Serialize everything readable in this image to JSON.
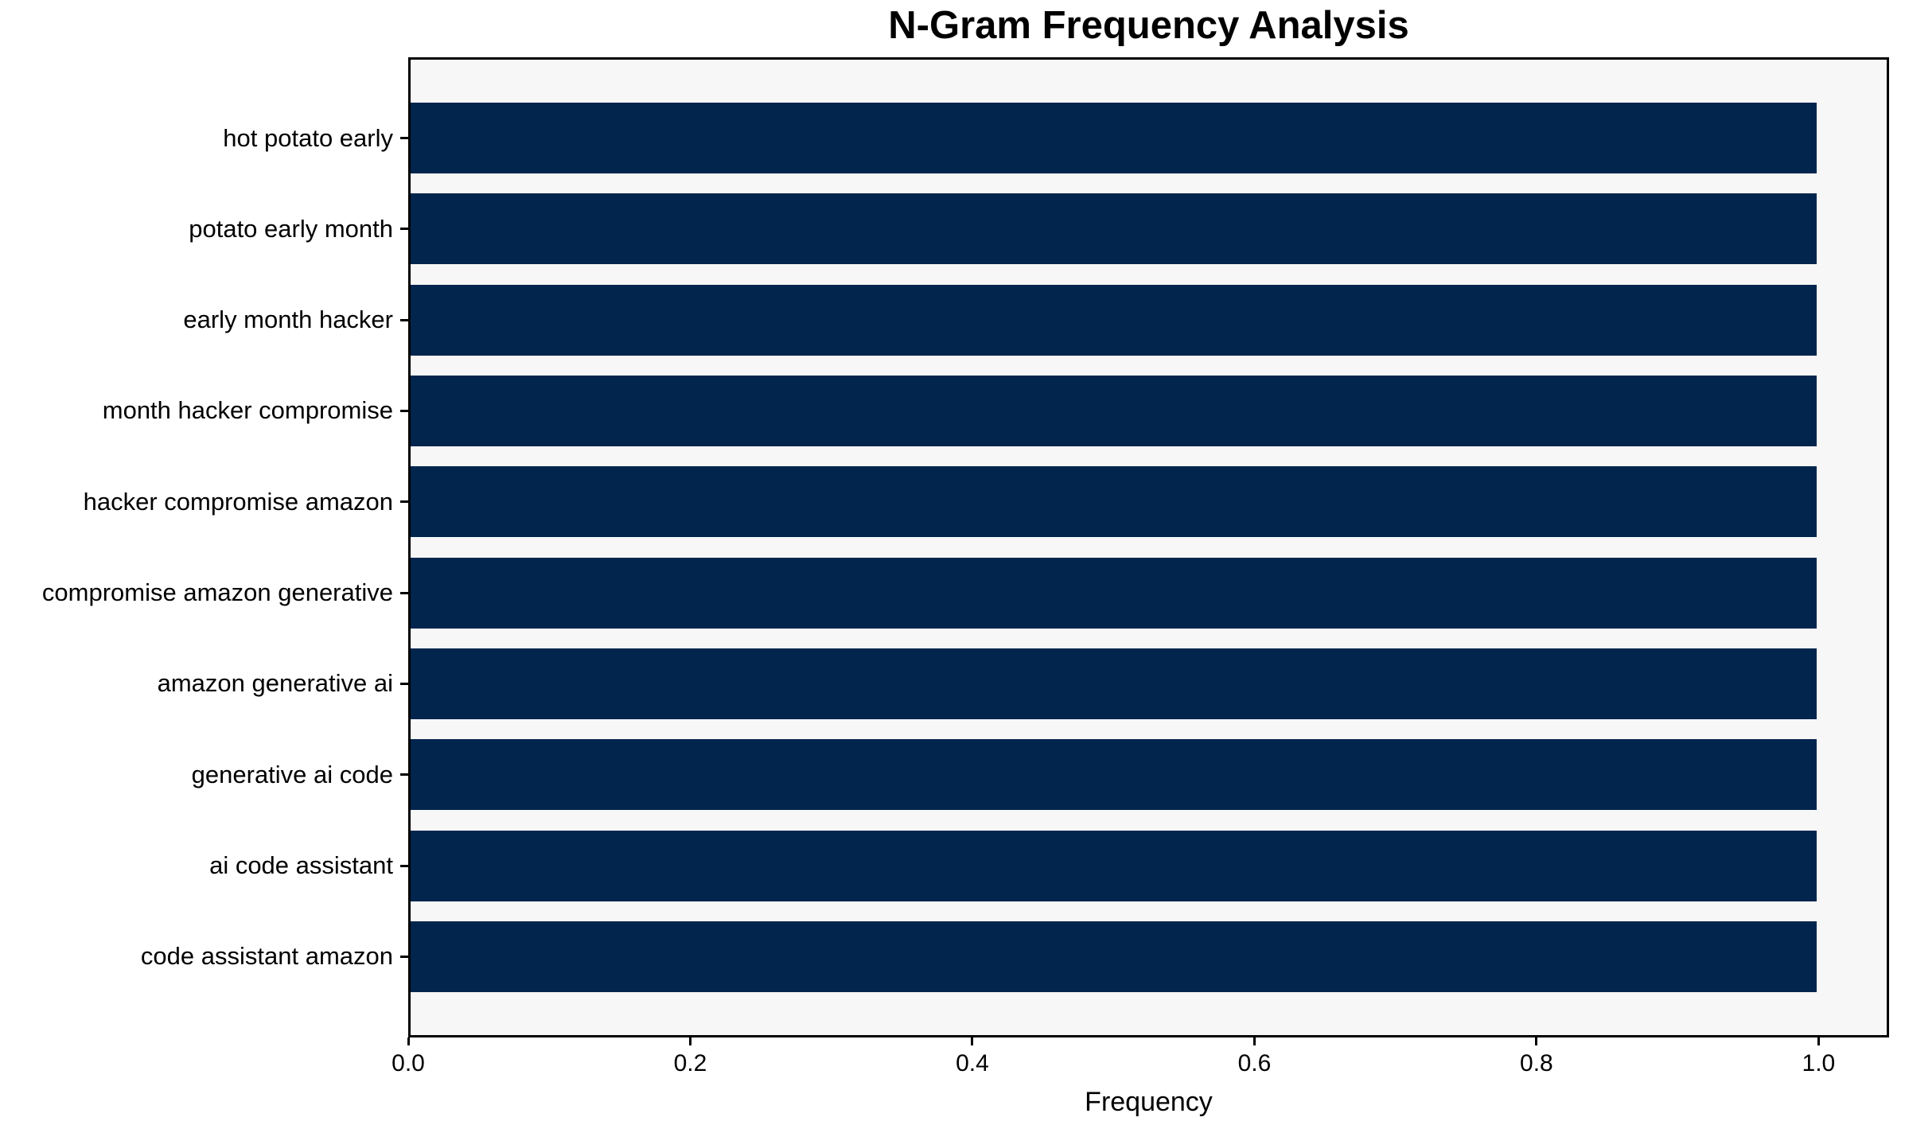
{
  "title": "N-Gram Frequency Analysis",
  "xlabel": "Frequency",
  "colors": {
    "bar": "#02254e",
    "plot_background": "#f7f7f7",
    "figure_background": "#ffffff",
    "spine": "#000000",
    "text": "#000000"
  },
  "chart_data": {
    "type": "bar",
    "orientation": "horizontal",
    "title": "N-Gram Frequency Analysis",
    "xlabel": "Frequency",
    "ylabel": "",
    "categories": [
      "hot potato early",
      "potato early month",
      "early month hacker",
      "month hacker compromise",
      "hacker compromise amazon",
      "compromise amazon generative",
      "amazon generative ai",
      "generative ai code",
      "ai code assistant",
      "code assistant amazon"
    ],
    "values": [
      1.0,
      1.0,
      1.0,
      1.0,
      1.0,
      1.0,
      1.0,
      1.0,
      1.0,
      1.0
    ],
    "xlim": [
      0,
      1.05
    ],
    "xticks": [
      0.0,
      0.2,
      0.4,
      0.6,
      0.8,
      1.0
    ],
    "xtick_labels": [
      "0.0",
      "0.2",
      "0.4",
      "0.6",
      "0.8",
      "1.0"
    ],
    "bar_width_ratio": 0.78,
    "grid": false,
    "legend": false
  }
}
